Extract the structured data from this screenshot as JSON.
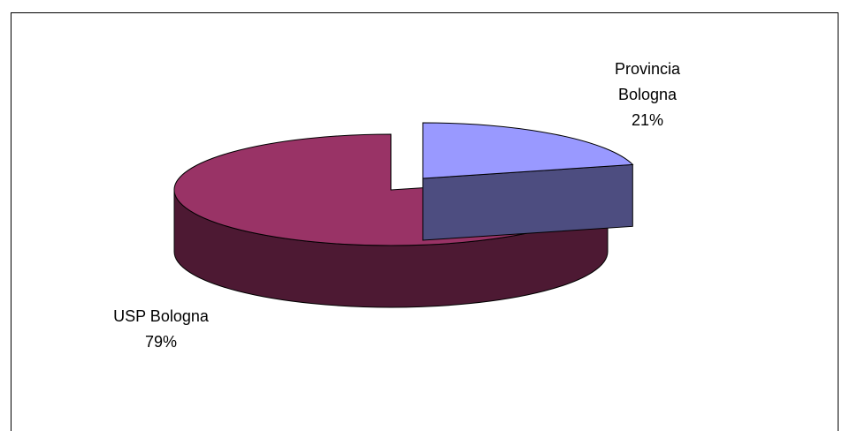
{
  "chart_data": {
    "type": "pie",
    "style": "3d-exploded",
    "title": "",
    "slices": [
      {
        "label_lines": [
          "Provincia",
          "Bologna"
        ],
        "percent_label": "21%",
        "value": 21,
        "top_color": "#9999ff",
        "side_color": "#4d4d80"
      },
      {
        "label_lines": [
          "USP Bologna"
        ],
        "percent_label": "79%",
        "value": 79,
        "top_color": "#993366",
        "side_color": "#4d1933"
      }
    ]
  }
}
